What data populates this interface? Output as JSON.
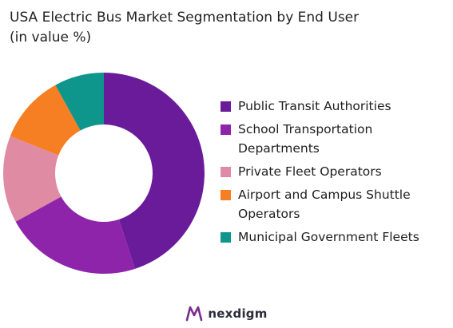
{
  "title": {
    "line1": "USA Electric Bus Market Segmentation by End User",
    "line2": "(in value %)"
  },
  "chart_data": {
    "type": "pie",
    "variant": "donut",
    "title": "USA Electric Bus Market Segmentation by End User (in value %)",
    "legend_position": "right",
    "series": [
      {
        "name": "Public Transit Authorities",
        "value": 45,
        "color": "#6a1b9a",
        "label_lines": [
          "Public Transit Authorities"
        ]
      },
      {
        "name": "School Transportation Departments",
        "value": 22,
        "color": "#8e24aa",
        "label_lines": [
          "School Transportation",
          "Departments"
        ]
      },
      {
        "name": "Private Fleet Operators",
        "value": 14,
        "color": "#e08ba4",
        "label_lines": [
          "Private Fleet Operators"
        ]
      },
      {
        "name": "Airport and Campus Shuttle Operators",
        "value": 11,
        "color": "#f57f22",
        "label_lines": [
          "Airport and Campus Shuttle",
          "Operators"
        ]
      },
      {
        "name": "Municipal Government Fleets",
        "value": 8,
        "color": "#0e968c",
        "label_lines": [
          "Municipal Government Fleets"
        ]
      }
    ]
  },
  "footer": {
    "brand": "nexdigm",
    "logo_icon": "nexdigm-logo-icon",
    "logo_color": "#7b2d8e"
  }
}
